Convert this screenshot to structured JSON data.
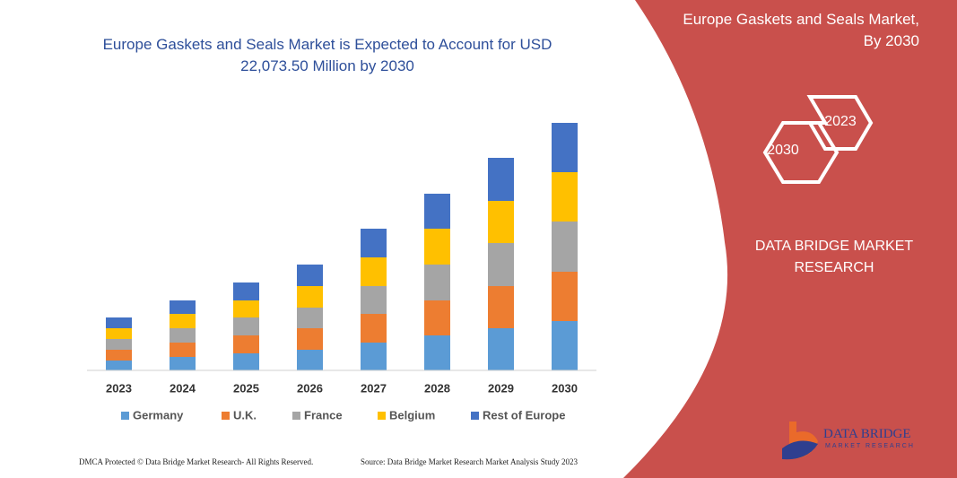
{
  "chart_data": {
    "type": "stacked-bar",
    "title": "Europe Gaskets and Seals Market is Expected to Account for USD 22,073.50 Million by 2030",
    "categories": [
      "2023",
      "2024",
      "2025",
      "2026",
      "2027",
      "2028",
      "2029",
      "2030"
    ],
    "series": [
      {
        "name": "Germany",
        "color": "#5b9bd5",
        "values": [
          11,
          15,
          19,
          23,
          31,
          39,
          47,
          55
        ]
      },
      {
        "name": "U.K.",
        "color": "#ed7d31",
        "values": [
          12,
          16,
          20,
          24,
          32,
          39,
          47,
          55
        ]
      },
      {
        "name": "France",
        "color": "#a5a5a5",
        "values": [
          12,
          16,
          20,
          23,
          31,
          40,
          48,
          56
        ]
      },
      {
        "name": "Belgium",
        "color": "#ffc000",
        "values": [
          12,
          16,
          19,
          24,
          32,
          40,
          47,
          55
        ]
      },
      {
        "name": "Rest of Europe",
        "color": "#4472c4",
        "values": [
          12,
          15,
          20,
          24,
          32,
          39,
          48,
          55
        ]
      }
    ],
    "ylim": [
      0,
      280
    ],
    "legend": "bottom"
  },
  "panel": {
    "heading": "Europe Gaskets and Seals Market, By 2030",
    "hexagons": [
      "2023",
      "2030"
    ],
    "company": "DATA BRIDGE MARKET RESEARCH"
  },
  "logo": {
    "name": "DATA BRIDGE",
    "tagline": "MARKET RESEARCH"
  },
  "footer": {
    "left": "DMCA Protected © Data Bridge Market Research- All Rights Reserved.",
    "right": "Source: Data Bridge Market Research Market Analysis Study 2023"
  }
}
